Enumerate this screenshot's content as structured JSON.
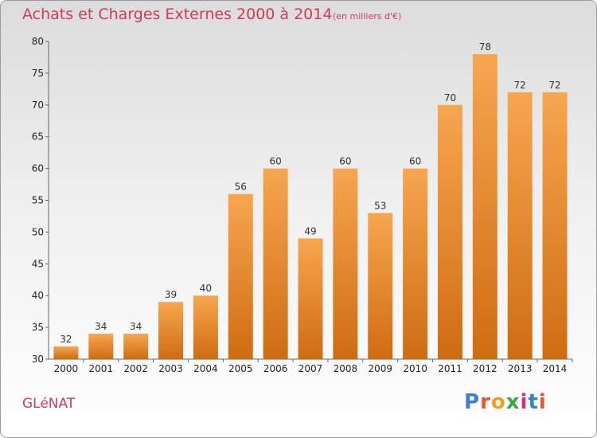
{
  "header": {
    "title": "Achats et Charges Externes 2000 à 2014",
    "subtitle": "(en milliers d'€)"
  },
  "footer": {
    "commune": "GLéNAT",
    "brand": "Proxiti"
  },
  "colors": {
    "bar_light": "#f7a650",
    "bar_dark": "#cf6c12",
    "title": "#d03a5a"
  },
  "chart_data": {
    "type": "bar",
    "categories": [
      "2000",
      "2001",
      "2002",
      "2003",
      "2004",
      "2005",
      "2006",
      "2007",
      "2008",
      "2009",
      "2010",
      "2011",
      "2012",
      "2013",
      "2014"
    ],
    "values": [
      32,
      34,
      34,
      39,
      40,
      56,
      60,
      49,
      60,
      53,
      60,
      70,
      78,
      72,
      72
    ],
    "ylim": [
      30,
      80
    ],
    "yticks": [
      30,
      35,
      40,
      45,
      50,
      55,
      60,
      65,
      70,
      75,
      80
    ],
    "grid": false,
    "data_labels": true
  }
}
